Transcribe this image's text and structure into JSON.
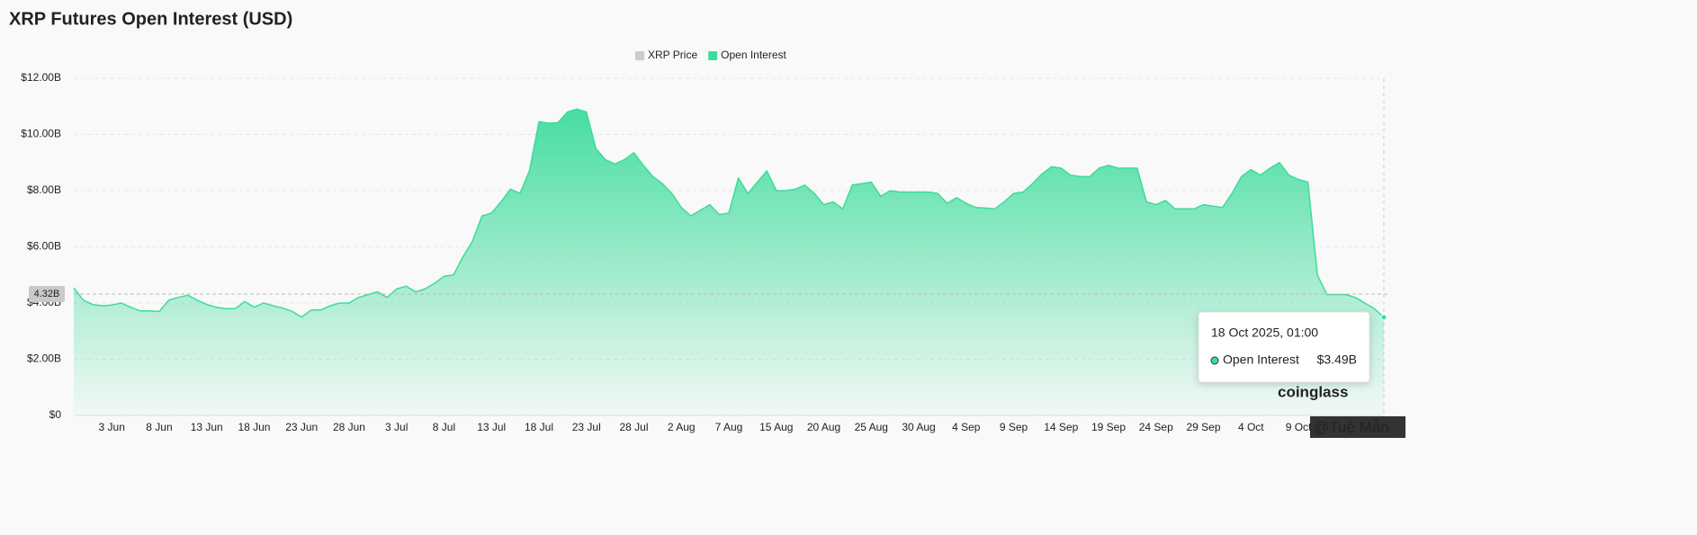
{
  "chart_data": {
    "type": "area",
    "title": "XRP Futures Open Interest (USD)",
    "categories": [
      null,
      null,
      null,
      null,
      "3 Jun",
      null,
      null,
      null,
      null,
      "8 Jun",
      null,
      null,
      null,
      null,
      "13 Jun",
      null,
      null,
      null,
      null,
      "18 Jun",
      null,
      null,
      null,
      null,
      "23 Jun",
      null,
      null,
      null,
      null,
      "28 Jun",
      null,
      null,
      null,
      null,
      "3 Jul",
      null,
      null,
      null,
      null,
      "8 Jul",
      null,
      null,
      null,
      null,
      "13 Jul",
      null,
      null,
      null,
      null,
      "18 Jul",
      null,
      null,
      null,
      null,
      "23 Jul",
      null,
      null,
      null,
      null,
      "28 Jul",
      null,
      null,
      null,
      null,
      "2 Aug",
      null,
      null,
      null,
      null,
      "7 Aug",
      null,
      null,
      null,
      null,
      "15 Aug",
      null,
      null,
      null,
      null,
      "20 Aug",
      null,
      null,
      null,
      null,
      "25 Aug",
      null,
      null,
      null,
      null,
      "30 Aug",
      null,
      null,
      null,
      null,
      "4 Sep",
      null,
      null,
      null,
      null,
      "9 Sep",
      null,
      null,
      null,
      null,
      "14 Sep",
      null,
      null,
      null,
      null,
      "19 Sep",
      null,
      null,
      null,
      null,
      "24 Sep",
      null,
      null,
      null,
      null,
      "29 Sep",
      null,
      null,
      null,
      null,
      "4 Oct",
      null,
      null,
      null,
      null,
      "9 Oct",
      null,
      null,
      null,
      null,
      null,
      null,
      null,
      null,
      null
    ],
    "series": [
      {
        "name": "XRP Price",
        "color": "#cccccc",
        "visible": false
      },
      {
        "name": "Open Interest",
        "color": "#3ddc9c",
        "visible": true,
        "values": [
          4.54,
          4.1,
          3.95,
          3.9,
          3.93,
          4.0,
          3.85,
          3.72,
          3.72,
          3.7,
          4.1,
          4.2,
          4.28,
          4.1,
          3.95,
          3.85,
          3.8,
          3.8,
          4.05,
          3.85,
          4.0,
          3.9,
          3.82,
          3.7,
          3.5,
          3.75,
          3.75,
          3.9,
          4.0,
          4.0,
          4.2,
          4.3,
          4.4,
          4.2,
          4.5,
          4.6,
          4.4,
          4.5,
          4.7,
          4.95,
          5.0,
          5.65,
          6.2,
          7.1,
          7.2,
          7.6,
          8.05,
          7.9,
          8.7,
          10.45,
          10.4,
          10.42,
          10.8,
          10.9,
          10.8,
          9.5,
          9.1,
          8.95,
          9.1,
          9.35,
          8.9,
          8.5,
          8.25,
          7.9,
          7.4,
          7.1,
          7.3,
          7.5,
          7.15,
          7.2,
          8.45,
          7.9,
          8.3,
          8.7,
          8.0,
          8.0,
          8.05,
          8.2,
          7.9,
          7.5,
          7.6,
          7.35,
          8.2,
          8.25,
          8.3,
          7.8,
          8.0,
          7.95,
          7.95,
          7.95,
          7.95,
          7.9,
          7.55,
          7.75,
          7.55,
          7.4,
          7.38,
          7.35,
          7.6,
          7.9,
          7.95,
          8.25,
          8.6,
          8.85,
          8.8,
          8.55,
          8.5,
          8.5,
          8.8,
          8.9,
          8.8,
          8.8,
          8.8,
          7.6,
          7.5,
          7.65,
          7.35,
          7.35,
          7.35,
          7.5,
          7.45,
          7.4,
          7.9,
          8.5,
          8.75,
          8.55,
          8.8,
          9.0,
          8.55,
          8.4,
          8.3,
          5.0,
          4.3,
          4.3,
          4.3,
          4.2,
          4.0,
          3.8,
          3.49
        ]
      }
    ],
    "ylim": [
      0,
      12
    ],
    "yticks": [
      {
        "value": 0,
        "label": "$0"
      },
      {
        "value": 2,
        "label": "$2.00B"
      },
      {
        "value": 4,
        "label": "$4.00B"
      },
      {
        "value": 6,
        "label": "$6.00B"
      },
      {
        "value": 8,
        "label": "$8.00B"
      },
      {
        "value": 10,
        "label": "$10.00B"
      },
      {
        "value": 12,
        "label": "$12.00B"
      }
    ],
    "grid": true,
    "legend_position": "top",
    "current_value": {
      "value": 4.32,
      "label": "4.32B"
    },
    "tooltip": {
      "date": "18 Oct 2025, 01:00",
      "value_label": "$3.49B"
    },
    "watermarks": {
      "brand": "coinglass",
      "author": "@Tuệ Mẫn"
    }
  }
}
